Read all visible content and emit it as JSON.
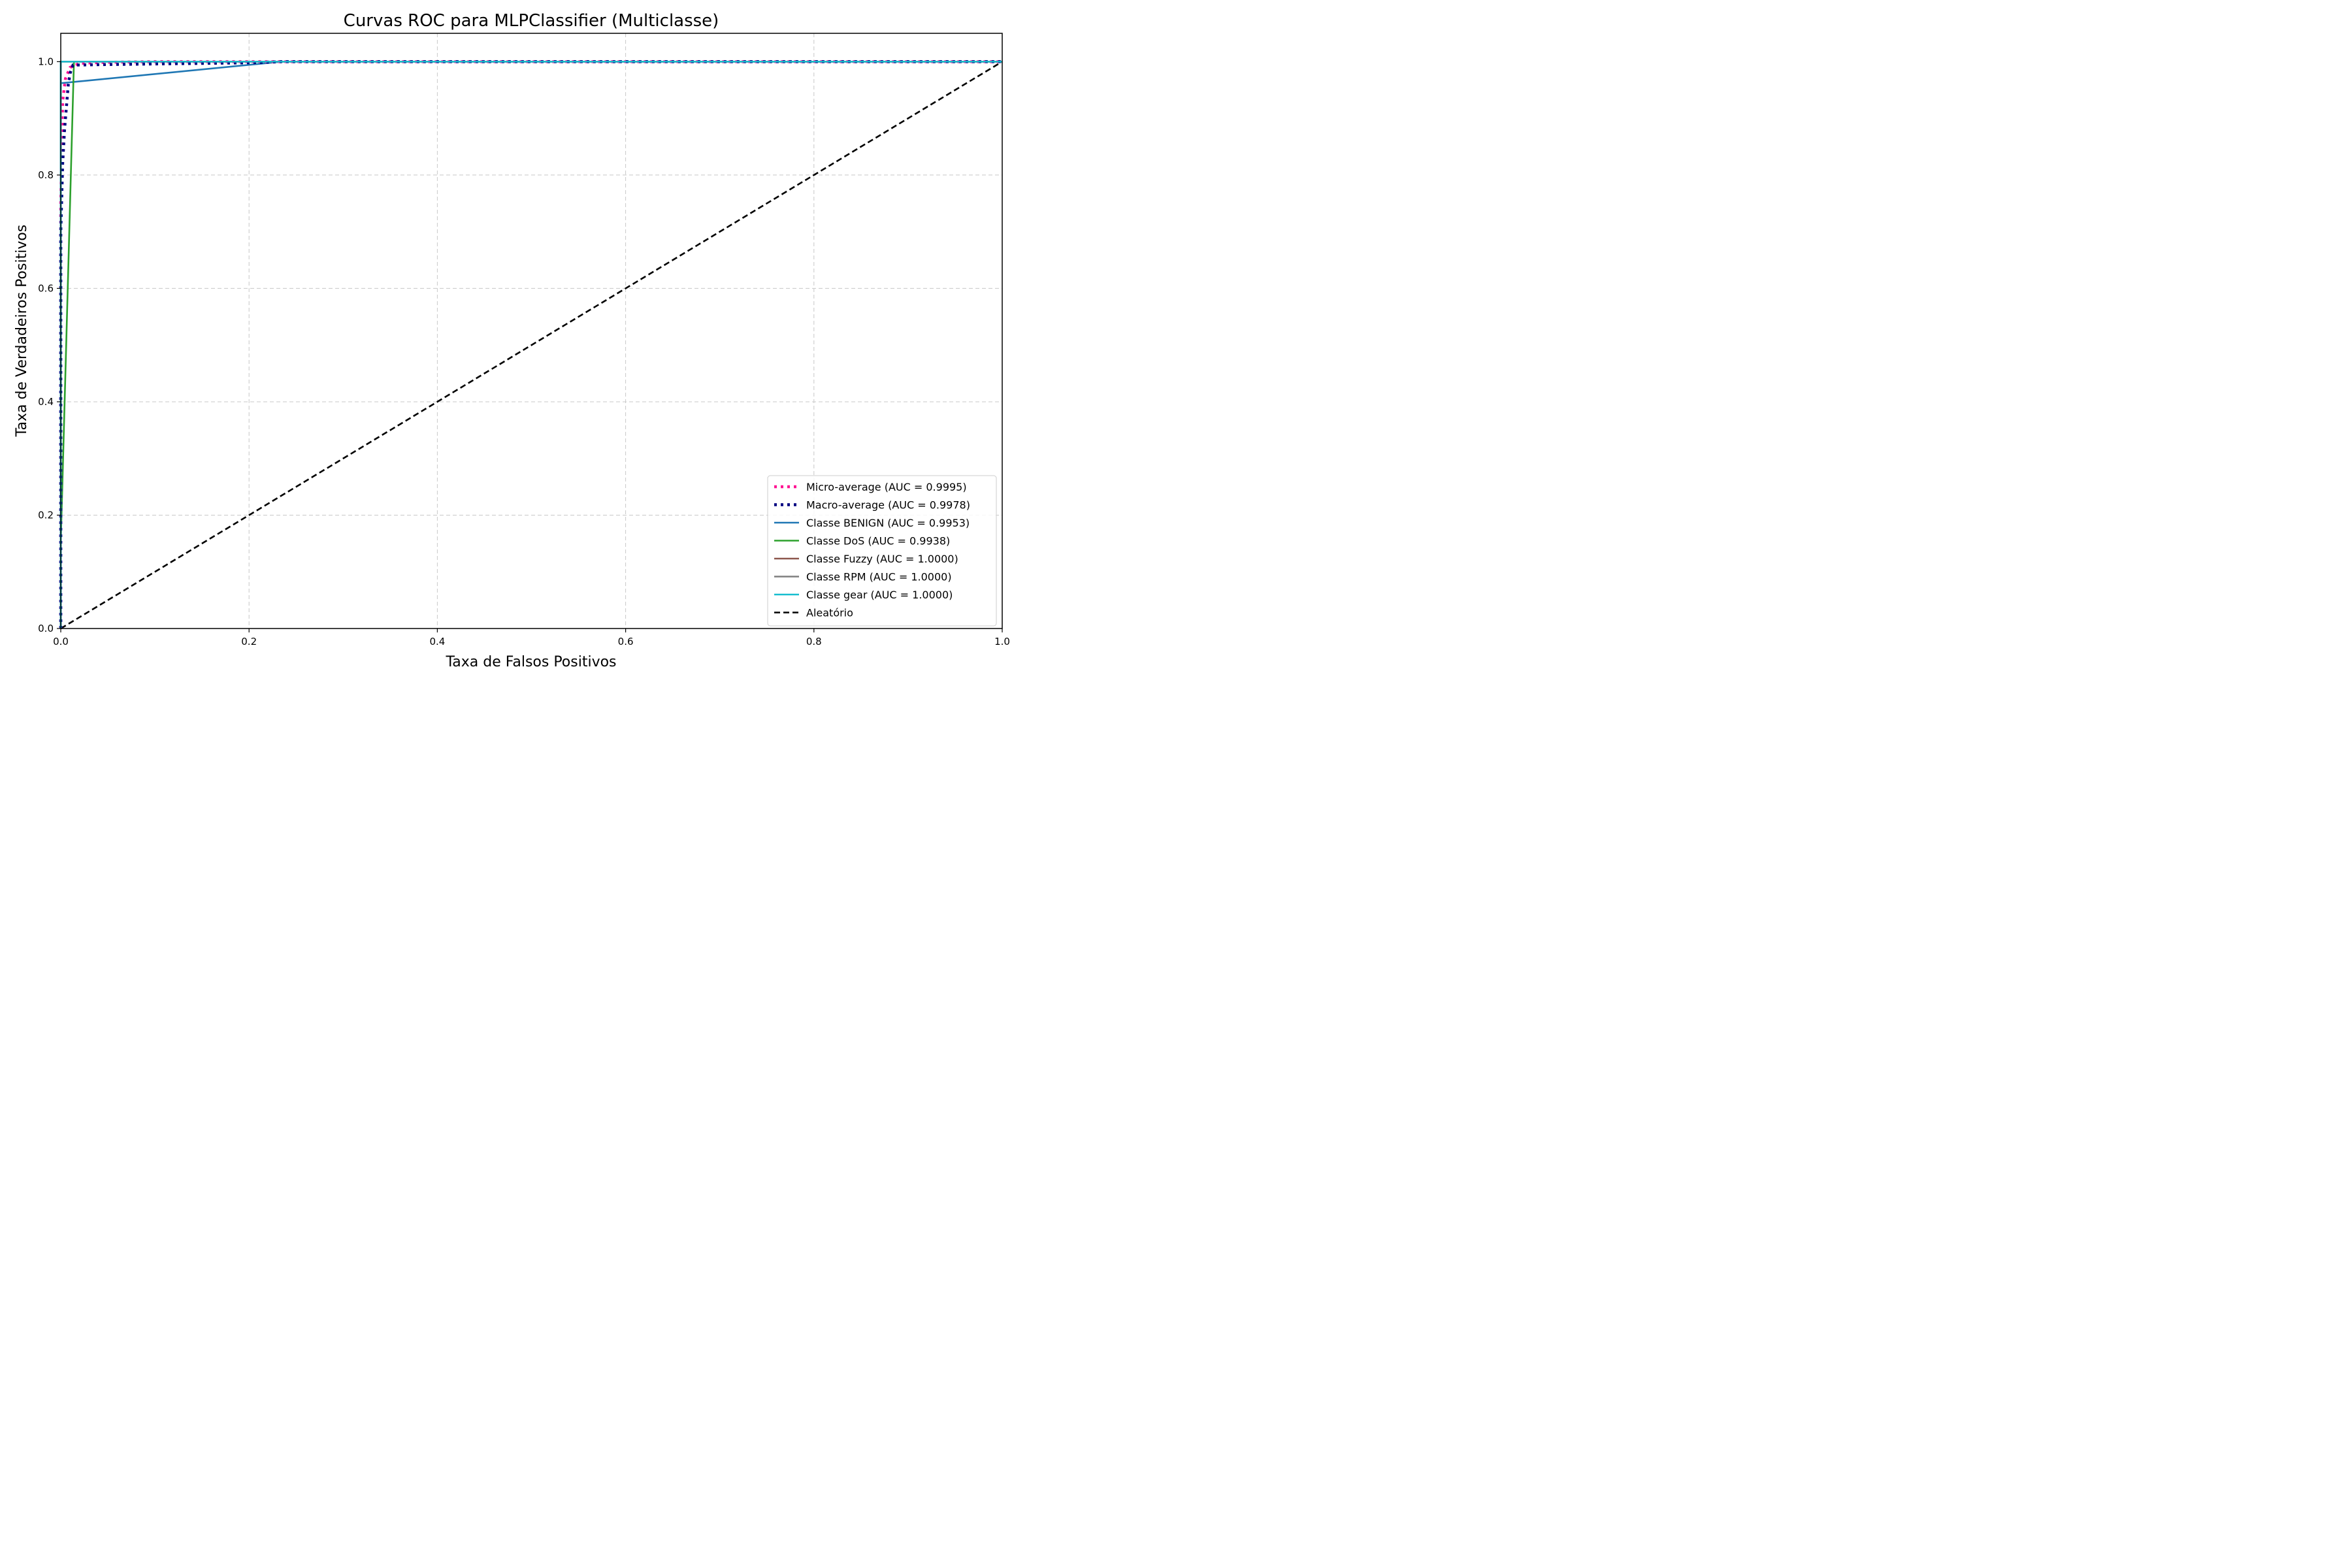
{
  "chart_data": {
    "type": "line",
    "title": "Curvas ROC para MLPClassifier (Multiclasse)",
    "xlabel": "Taxa de Falsos Positivos",
    "ylabel": "Taxa de Verdadeiros Positivos",
    "xlim": [
      0.0,
      1.0
    ],
    "ylim": [
      0.0,
      1.05
    ],
    "xticks": [
      0.0,
      0.2,
      0.4,
      0.6,
      0.8,
      1.0
    ],
    "yticks": [
      0.0,
      0.2,
      0.4,
      0.6,
      0.8,
      1.0
    ],
    "xtick_labels": [
      "0.0",
      "0.2",
      "0.4",
      "0.6",
      "0.8",
      "1.0"
    ],
    "ytick_labels": [
      "0.0",
      "0.2",
      "0.4",
      "0.6",
      "0.8",
      "1.0"
    ],
    "grid": true,
    "legend_position": "lower-right",
    "series": [
      {
        "name": "Micro-average (AUC = 0.9995)",
        "color": "#ff1493",
        "style": "dotted",
        "x": [
          0.0,
          0.0,
          0.002,
          0.005,
          0.01,
          0.02,
          0.05,
          0.1,
          0.3,
          1.0
        ],
        "y": [
          0.0,
          0.75,
          0.93,
          0.97,
          0.99,
          0.997,
          0.999,
          1.0,
          1.0,
          1.0
        ]
      },
      {
        "name": "Macro-average (AUC = 0.9978)",
        "color": "#000080",
        "style": "dotted",
        "x": [
          0.0,
          0.0,
          0.002,
          0.004,
          0.006,
          0.008,
          0.01,
          0.013,
          0.05,
          0.1,
          0.2,
          0.235,
          1.0
        ],
        "y": [
          0.0,
          0.7,
          0.82,
          0.88,
          0.92,
          0.96,
          0.98,
          0.994,
          0.995,
          0.996,
          0.998,
          1.0,
          1.0
        ]
      },
      {
        "name": "Classe BENIGN (AUC = 0.9953)",
        "color": "#1f77b4",
        "style": "solid",
        "x": [
          0.0,
          0.0,
          0.235,
          1.0
        ],
        "y": [
          0.0,
          0.962,
          1.0,
          1.0
        ]
      },
      {
        "name": "Classe DoS (AUC = 0.9938)",
        "color": "#2ca02c",
        "style": "solid",
        "x": [
          0.0,
          0.0,
          0.014,
          0.014,
          1.0
        ],
        "y": [
          0.0,
          0.15,
          1.0,
          1.0,
          1.0
        ]
      },
      {
        "name": "Classe Fuzzy (AUC = 1.0000)",
        "color": "#8c564b",
        "style": "solid",
        "x": [
          0.0,
          0.0,
          1.0
        ],
        "y": [
          0.0,
          1.0,
          1.0
        ]
      },
      {
        "name": "Classe RPM (AUC = 1.0000)",
        "color": "#7f7f7f",
        "style": "solid",
        "x": [
          0.0,
          0.0,
          1.0
        ],
        "y": [
          0.0,
          1.0,
          1.0
        ]
      },
      {
        "name": "Classe gear (AUC = 1.0000)",
        "color": "#17becf",
        "style": "solid",
        "x": [
          0.0,
          0.0,
          1.0
        ],
        "y": [
          0.0,
          1.0,
          1.0
        ]
      },
      {
        "name": "Aleatório",
        "color": "#000000",
        "style": "dashed",
        "x": [
          0.0,
          1.0
        ],
        "y": [
          0.0,
          1.0
        ]
      }
    ]
  }
}
